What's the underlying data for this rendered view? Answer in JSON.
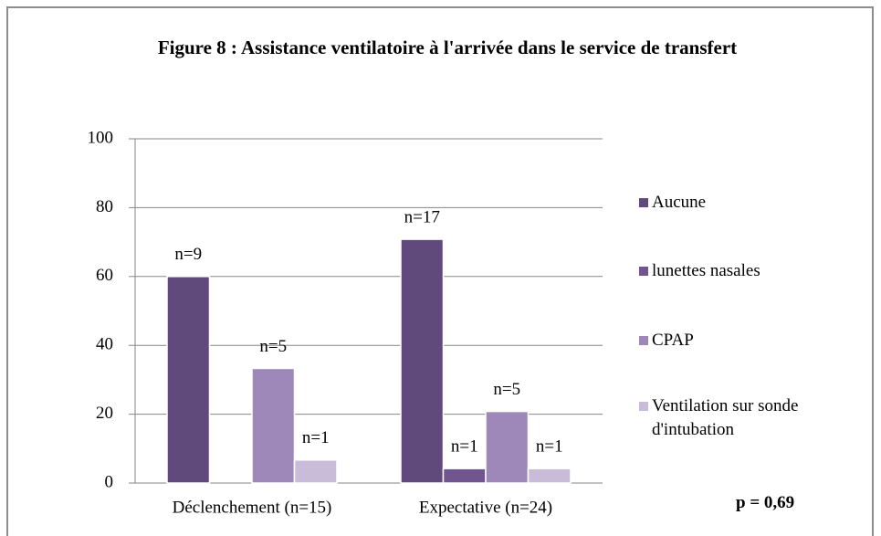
{
  "chart_data": {
    "type": "bar",
    "title": "Figure 8 : Assistance ventilatoire à l'arrivée dans le service de transfert",
    "categories": [
      "Déclenchement (n=15)",
      "Expectative (n=24)"
    ],
    "series": [
      {
        "name": "Aucune",
        "color": "#604a7b",
        "values": [
          60,
          70.8
        ],
        "count_labels": [
          "n=9",
          "n=17"
        ]
      },
      {
        "name": "lunettes nasales",
        "color": "#71558f",
        "values": [
          0,
          4.2
        ],
        "count_labels": [
          null,
          "n=1"
        ]
      },
      {
        "name": "CPAP",
        "color": "#9d88b9",
        "values": [
          33.3,
          20.8
        ],
        "count_labels": [
          "n=5",
          "n=5"
        ]
      },
      {
        "name": "Ventilation sur sonde d'intubation",
        "color": "#c8bcd9",
        "values": [
          6.7,
          4.2
        ],
        "count_labels": [
          "n=1",
          "n=1"
        ]
      }
    ],
    "ylim": [
      0,
      100
    ],
    "yticks": [
      0,
      20,
      40,
      60,
      80,
      100
    ],
    "grid": true,
    "legend": "right",
    "annotation": "p = 0,69"
  }
}
